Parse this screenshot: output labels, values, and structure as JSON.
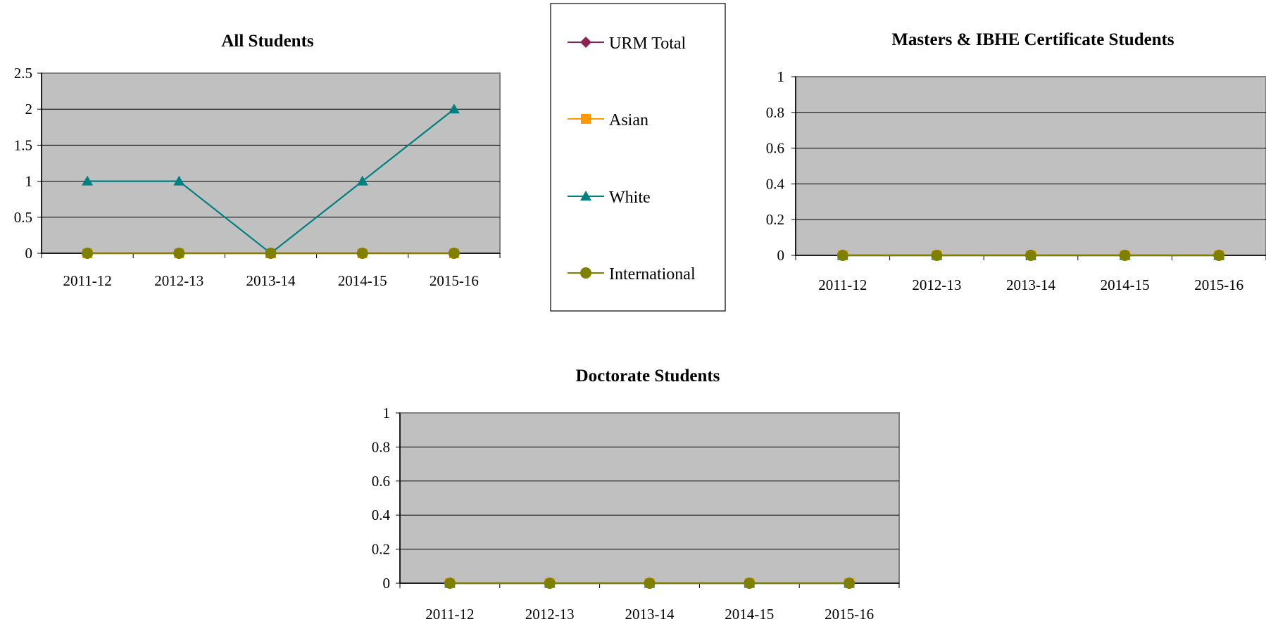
{
  "legend": {
    "items": [
      {
        "name": "URM Total",
        "color": "#8B2252",
        "marker": "diamond"
      },
      {
        "name": "Asian",
        "color": "#FF9900",
        "marker": "square"
      },
      {
        "name": "White",
        "color": "#008080",
        "marker": "triangle"
      },
      {
        "name": "International",
        "color": "#808000",
        "marker": "circle"
      }
    ]
  },
  "chart_data": [
    {
      "type": "line",
      "title": "All Students",
      "categories": [
        "2011-12",
        "2012-13",
        "2013-14",
        "2014-15",
        "2015-16"
      ],
      "ylim": [
        0,
        2.5
      ],
      "yticks": [
        "0",
        "0.5",
        "1",
        "1.5",
        "2",
        "2.5"
      ],
      "grid": true,
      "series": [
        {
          "name": "URM Total",
          "values": [
            0,
            0,
            0,
            0,
            0
          ]
        },
        {
          "name": "Asian",
          "values": [
            0,
            0,
            0,
            0,
            0
          ]
        },
        {
          "name": "White",
          "values": [
            1,
            1,
            0,
            1,
            2
          ]
        },
        {
          "name": "International",
          "values": [
            0,
            0,
            0,
            0,
            0
          ]
        }
      ]
    },
    {
      "type": "line",
      "title": "Masters & IBHE Certificate Students",
      "categories": [
        "2011-12",
        "2012-13",
        "2013-14",
        "2014-15",
        "2015-16"
      ],
      "ylim": [
        0,
        1
      ],
      "yticks": [
        "0",
        "0.2",
        "0.4",
        "0.6",
        "0.8",
        "1"
      ],
      "grid": true,
      "series": [
        {
          "name": "URM Total",
          "values": [
            0,
            0,
            0,
            0,
            0
          ]
        },
        {
          "name": "Asian",
          "values": [
            0,
            0,
            0,
            0,
            0
          ]
        },
        {
          "name": "White",
          "values": [
            0,
            0,
            0,
            0,
            0
          ]
        },
        {
          "name": "International",
          "values": [
            0,
            0,
            0,
            0,
            0
          ]
        }
      ]
    },
    {
      "type": "line",
      "title": "Doctorate Students",
      "categories": [
        "2011-12",
        "2012-13",
        "2013-14",
        "2014-15",
        "2015-16"
      ],
      "ylim": [
        0,
        1
      ],
      "yticks": [
        "0",
        "0.2",
        "0.4",
        "0.6",
        "0.8",
        "1"
      ],
      "grid": true,
      "series": [
        {
          "name": "URM Total",
          "values": [
            0,
            0,
            0,
            0,
            0
          ]
        },
        {
          "name": "Asian",
          "values": [
            0,
            0,
            0,
            0,
            0
          ]
        },
        {
          "name": "White",
          "values": [
            0,
            0,
            0,
            0,
            0
          ]
        },
        {
          "name": "International",
          "values": [
            0,
            0,
            0,
            0,
            0
          ]
        }
      ]
    }
  ]
}
